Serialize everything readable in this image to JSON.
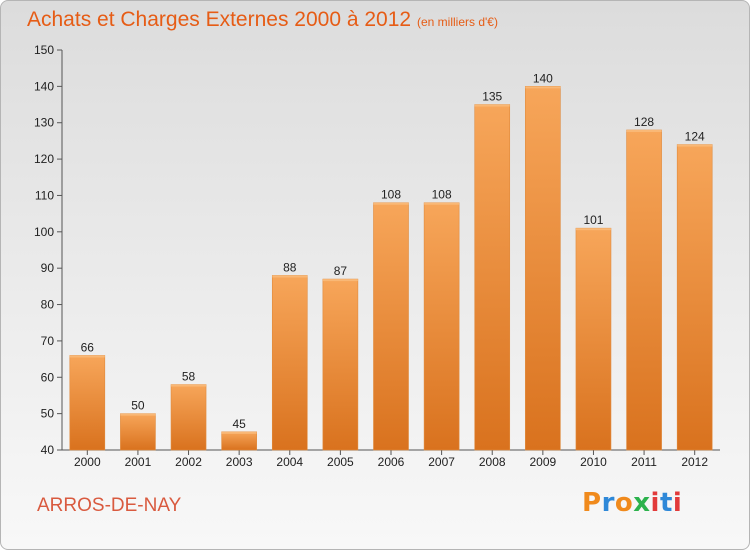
{
  "title": "Achats et Charges Externes 2000 à 2012",
  "unit": "(en milliers d'€)",
  "location": "ARROS-DE-NAY",
  "logo": {
    "letters": [
      "P",
      "r",
      "o",
      "x",
      "i",
      "t",
      "i"
    ],
    "colors": [
      "#f08a1c",
      "#2e88d8",
      "#f08a1c",
      "#2bb24c",
      "#e23a3a",
      "#2e88d8",
      "#e23a3a"
    ]
  },
  "colors": {
    "bar_light": "#f7a65a",
    "bar_dark": "#d9721e",
    "title": "#e65c15",
    "location": "#d95a3f"
  },
  "chart_data": {
    "type": "bar",
    "title": "Achats et Charges Externes 2000 à 2012",
    "subtitle": "(en milliers d'€)",
    "xlabel": "",
    "ylabel": "",
    "categories": [
      "2000",
      "2001",
      "2002",
      "2003",
      "2004",
      "2005",
      "2006",
      "2007",
      "2008",
      "2009",
      "2010",
      "2011",
      "2012"
    ],
    "values": [
      66,
      50,
      58,
      45,
      88,
      87,
      108,
      108,
      135,
      140,
      101,
      128,
      124
    ],
    "data_labels": [
      "66",
      "50",
      "58",
      "45",
      "88",
      "87",
      "108",
      "108",
      "135",
      "140",
      "101",
      "128",
      "124"
    ],
    "ylim": [
      40,
      150
    ],
    "yticks": [
      40,
      50,
      60,
      70,
      80,
      90,
      100,
      110,
      120,
      130,
      140,
      150
    ],
    "ytick_labels": [
      "40",
      "50",
      "60",
      "70",
      "80",
      "90",
      "100",
      "110",
      "120",
      "130",
      "140",
      "150"
    ],
    "grid": false,
    "legend": "none"
  }
}
